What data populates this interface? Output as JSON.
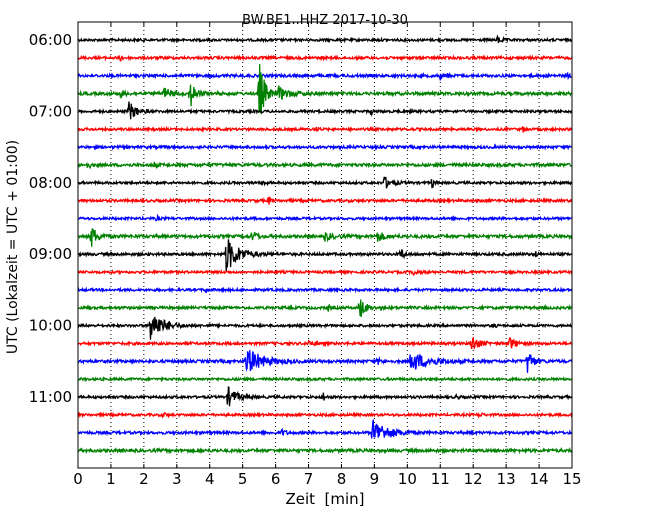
{
  "chart_data": {
    "type": "line",
    "title": "BW.BE1..HHZ 2017-10-30",
    "xlabel": "Zeit  [min]",
    "ylabel": "UTC (Lokalzeit = UTC + 01:00)",
    "xlim": [
      0,
      15
    ],
    "x_ticks": [
      0,
      1,
      2,
      3,
      4,
      5,
      6,
      7,
      8,
      9,
      10,
      11,
      12,
      13,
      14,
      15
    ],
    "grid": "vertical dotted",
    "trace_interval_min": 15,
    "row_colors": [
      "#000000",
      "#ff0000",
      "#0000ff",
      "#008000"
    ],
    "y_ticks": [
      {
        "label": "06:00",
        "row": 0
      },
      {
        "label": "07:00",
        "row": 4
      },
      {
        "label": "08:00",
        "row": 8
      },
      {
        "label": "09:00",
        "row": 12
      },
      {
        "label": "10:00",
        "row": 16
      },
      {
        "label": "11:00",
        "row": 20
      }
    ],
    "series": [
      {
        "start": "06:00",
        "noise": 1.2,
        "events": [
          {
            "t": 12.75,
            "amp": 4,
            "dur": 0.1
          }
        ]
      },
      {
        "start": "06:15",
        "noise": 1.3,
        "events": [
          {
            "t": 1.3,
            "amp": 3,
            "dur": 0.05
          }
        ]
      },
      {
        "start": "06:30",
        "noise": 1.4,
        "events": [
          {
            "t": 11.2,
            "amp": 3,
            "dur": 0.05
          },
          {
            "t": 14.85,
            "amp": 3,
            "dur": 0.05
          },
          {
            "t": 11.0,
            "amp": 4,
            "dur": 0.05
          }
        ]
      },
      {
        "start": "06:45",
        "noise": 1.5,
        "events": [
          {
            "t": 1.3,
            "amp": 4,
            "dur": 0.1
          },
          {
            "t": 2.6,
            "amp": 6,
            "dur": 0.2
          },
          {
            "t": 3.4,
            "amp": 14,
            "dur": 0.15
          },
          {
            "t": 5.5,
            "amp": 34,
            "dur": 0.15
          },
          {
            "t": 6.1,
            "amp": 6,
            "dur": 0.3
          }
        ]
      },
      {
        "start": "07:00",
        "noise": 1.2,
        "events": [
          {
            "t": 1.55,
            "amp": 10,
            "dur": 0.2
          },
          {
            "t": 8.9,
            "amp": 3,
            "dur": 0.05
          }
        ]
      },
      {
        "start": "07:15",
        "noise": 1.2,
        "events": [
          {
            "t": 7.25,
            "amp": 3,
            "dur": 0.05
          },
          {
            "t": 13.5,
            "amp": 3,
            "dur": 0.05
          }
        ]
      },
      {
        "start": "07:30",
        "noise": 1.3,
        "events": []
      },
      {
        "start": "07:45",
        "noise": 1.5,
        "events": [
          {
            "t": 0.3,
            "amp": 3,
            "dur": 0.1
          },
          {
            "t": 2.3,
            "amp": 3,
            "dur": 0.05
          }
        ]
      },
      {
        "start": "08:00",
        "noise": 1.2,
        "events": [
          {
            "t": 5.6,
            "amp": 4,
            "dur": 0.05
          },
          {
            "t": 9.3,
            "amp": 6,
            "dur": 0.2
          },
          {
            "t": 10.75,
            "amp": 5,
            "dur": 0.05
          }
        ]
      },
      {
        "start": "08:15",
        "noise": 1.3,
        "events": [
          {
            "t": 5.8,
            "amp": 4,
            "dur": 0.05
          }
        ]
      },
      {
        "start": "08:30",
        "noise": 1.2,
        "events": [
          {
            "t": 2.4,
            "amp": 3,
            "dur": 0.05
          }
        ]
      },
      {
        "start": "08:45",
        "noise": 1.5,
        "events": [
          {
            "t": 0.4,
            "amp": 12,
            "dur": 0.15
          },
          {
            "t": 5.3,
            "amp": 7,
            "dur": 0.1
          },
          {
            "t": 7.5,
            "amp": 4,
            "dur": 0.2
          },
          {
            "t": 9.1,
            "amp": 5,
            "dur": 0.2
          }
        ]
      },
      {
        "start": "09:00",
        "noise": 1.3,
        "events": [
          {
            "t": 4.5,
            "amp": 18,
            "dur": 0.35
          },
          {
            "t": 9.8,
            "amp": 6,
            "dur": 0.1
          },
          {
            "t": 13.9,
            "amp": 3,
            "dur": 0.05
          }
        ]
      },
      {
        "start": "09:15",
        "noise": 1.2,
        "events": [
          {
            "t": 10.2,
            "amp": 3,
            "dur": 0.1
          }
        ]
      },
      {
        "start": "09:30",
        "noise": 1.2,
        "events": [
          {
            "t": 3.9,
            "amp": 3,
            "dur": 0.05
          }
        ]
      },
      {
        "start": "09:45",
        "noise": 1.3,
        "events": [
          {
            "t": 7.6,
            "amp": 3,
            "dur": 0.05
          },
          {
            "t": 8.55,
            "amp": 12,
            "dur": 0.15
          }
        ]
      },
      {
        "start": "10:00",
        "noise": 1.2,
        "events": [
          {
            "t": 2.2,
            "amp": 16,
            "dur": 0.35
          },
          {
            "t": 12.6,
            "amp": 3,
            "dur": 0.05
          }
        ]
      },
      {
        "start": "10:15",
        "noise": 1.3,
        "events": [
          {
            "t": 7.0,
            "amp": 3,
            "dur": 0.1
          },
          {
            "t": 11.95,
            "amp": 8,
            "dur": 0.2
          },
          {
            "t": 13.1,
            "amp": 6,
            "dur": 0.2
          }
        ]
      },
      {
        "start": "10:30",
        "noise": 1.4,
        "events": [
          {
            "t": 5.1,
            "amp": 14,
            "dur": 0.45
          },
          {
            "t": 10.1,
            "amp": 10,
            "dur": 0.5
          },
          {
            "t": 13.65,
            "amp": 13,
            "dur": 0.15
          },
          {
            "t": 9.1,
            "amp": 3,
            "dur": 0.1
          }
        ]
      },
      {
        "start": "10:45",
        "noise": 1.2,
        "events": []
      },
      {
        "start": "11:00",
        "noise": 1.2,
        "events": [
          {
            "t": 4.55,
            "amp": 10,
            "dur": 0.25
          },
          {
            "t": 7.45,
            "amp": 5,
            "dur": 0.05
          },
          {
            "t": 11.5,
            "amp": 3,
            "dur": 0.05
          }
        ]
      },
      {
        "start": "11:15",
        "noise": 1.2,
        "events": [
          {
            "t": 2.6,
            "amp": 3,
            "dur": 0.05
          },
          {
            "t": 12.2,
            "amp": 3,
            "dur": 0.05
          }
        ]
      },
      {
        "start": "11:30",
        "noise": 1.3,
        "events": [
          {
            "t": 6.2,
            "amp": 3,
            "dur": 0.1
          },
          {
            "t": 8.95,
            "amp": 14,
            "dur": 0.4
          }
        ]
      },
      {
        "start": "11:45",
        "noise": 1.5,
        "events": []
      }
    ]
  }
}
